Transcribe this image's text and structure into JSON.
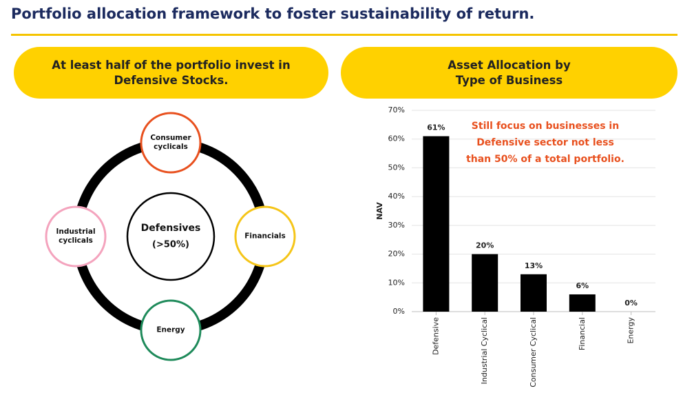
{
  "title": "Portfolio allocation framework to foster sustainability of return.",
  "diagram": {
    "heading": "At least half of the portfolio invest in Defensive Stocks.",
    "center": {
      "label": "Defensives",
      "sublabel": "(>50%)"
    },
    "nodes": [
      {
        "label": "Consumer cyclicals",
        "color": "#e8501e"
      },
      {
        "label": "Industrial cyclicals",
        "color": "#f4a3bd"
      },
      {
        "label": "Financials",
        "color": "#f5c518"
      },
      {
        "label": "Energy",
        "color": "#1e8a5a"
      }
    ]
  },
  "chart_data": {
    "type": "bar",
    "title": "Asset Allocation by Type of Business",
    "y_label": "NAV",
    "annotation": "Still focus on businesses in Defensive sector not less than 50% of a total portfolio.",
    "categories": [
      "Defensive",
      "Industrial Cyclical",
      "Consumer Cyclical",
      "Financial",
      "Energy"
    ],
    "values": [
      61,
      20,
      13,
      6,
      0
    ],
    "value_labels": [
      "61%",
      "20%",
      "13%",
      "6%",
      "0%"
    ],
    "color": "#000000",
    "ylim": [
      0,
      70
    ],
    "yticks": [
      {
        "value": 0,
        "label": "0%"
      },
      {
        "value": 10,
        "label": "10%"
      },
      {
        "value": 20,
        "label": "20%"
      },
      {
        "value": 30,
        "label": "30%"
      },
      {
        "value": 40,
        "label": "40%"
      },
      {
        "value": 50,
        "label": "50%"
      },
      {
        "value": 60,
        "label": "60%"
      },
      {
        "value": 70,
        "label": "70%"
      }
    ],
    "grid": true
  }
}
